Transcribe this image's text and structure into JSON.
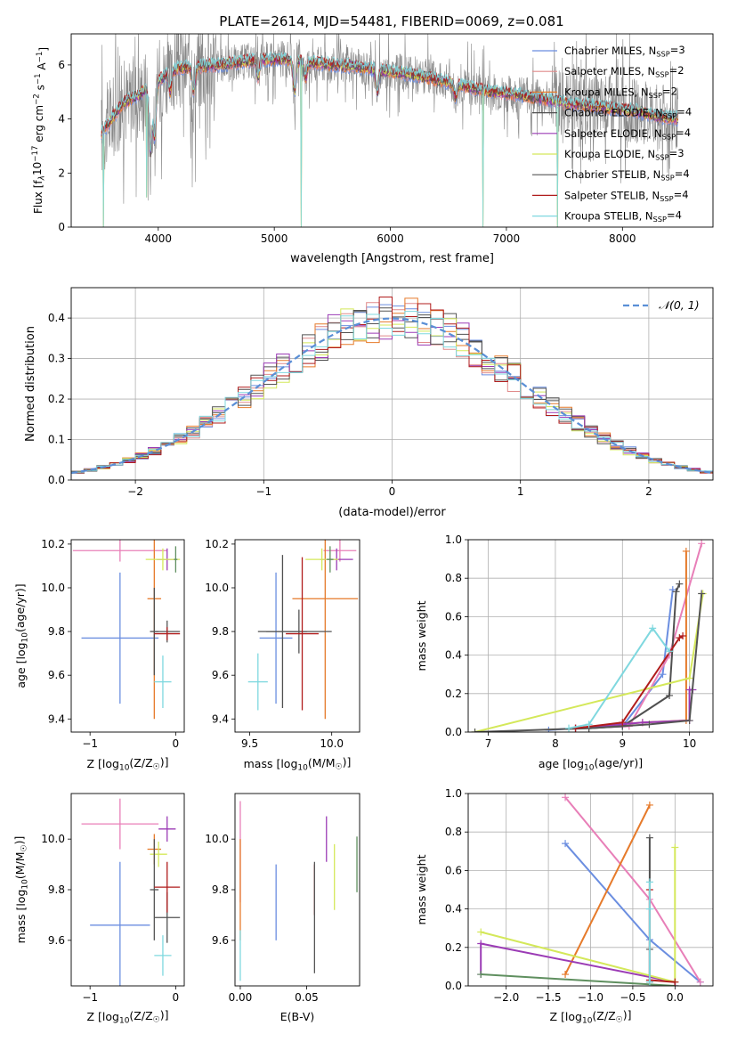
{
  "title": "PLATE=2614, MJD=54481, FIBERID=0069, z=0.081",
  "colors": {
    "chabrier_miles": "#6b8ee0",
    "salpeter_miles": "#e08a8a",
    "kroupa_miles": "#e67a2a",
    "chabrier_elodie": "#505050",
    "salpeter_elodie": "#9b3bb5",
    "kroupa_elodie": "#d4e85a",
    "chabrier_stelib": "#555555",
    "salpeter_stelib": "#b01c1c",
    "kroupa_stelib": "#7fd8df",
    "pink": "#e87fb8",
    "green_dark": "#5f8f5f",
    "gray": "#888888",
    "normal": "#5a8fd6"
  },
  "chart_data": [
    {
      "id": "spectrum",
      "type": "line",
      "title": "PLATE=2614, MJD=54481, FIBERID=0069, z=0.081",
      "xlabel": "wavelength [Angstrom, rest frame]",
      "ylabel_parts": [
        "Flux [f",
        "λ",
        "10",
        "−17",
        " erg cm",
        "−2",
        " s",
        "−1",
        " A",
        "−1",
        "]"
      ],
      "xlim": [
        3250,
        8780
      ],
      "ylim": [
        0,
        7.15
      ],
      "xticks": [
        4000,
        5000,
        6000,
        7000,
        8000
      ],
      "yticks": [
        0,
        2,
        4,
        6
      ],
      "legend_position": "top-right",
      "legend": [
        {
          "label": "Chabrier MILES, N",
          "sub": "SSP",
          "eq": "=3",
          "color": "#6b8ee0"
        },
        {
          "label": "Salpeter MILES, N",
          "sub": "SSP",
          "eq": "=2",
          "color": "#e08a8a"
        },
        {
          "label": "Kroupa MILES, N",
          "sub": "SSP",
          "eq": "=2",
          "color": "#e67a2a"
        },
        {
          "label": "Chabrier ELODIE, N",
          "sub": "SSP",
          "eq": "=4",
          "color": "#505050"
        },
        {
          "label": "Salpeter ELODIE, N",
          "sub": "SSP",
          "eq": "=4",
          "color": "#9b3bb5"
        },
        {
          "label": "Kroupa ELODIE, N",
          "sub": "SSP",
          "eq": "=3",
          "color": "#d4e85a"
        },
        {
          "label": "Chabrier STELIB, N",
          "sub": "SSP",
          "eq": "=4",
          "color": "#555555"
        },
        {
          "label": "Salpeter STELIB, N",
          "sub": "SSP",
          "eq": "=4",
          "color": "#b01c1c"
        },
        {
          "label": "Kroupa STELIB, N",
          "sub": "SSP",
          "eq": "=4",
          "color": "#7fd8df"
        }
      ],
      "continuum": [
        [
          3500,
          3.4
        ],
        [
          3600,
          4.0
        ],
        [
          3700,
          4.6
        ],
        [
          3800,
          4.8
        ],
        [
          3900,
          5.1
        ],
        [
          4000,
          5.4
        ],
        [
          4100,
          5.8
        ],
        [
          4200,
          5.9
        ],
        [
          4300,
          5.9
        ],
        [
          4500,
          6.0
        ],
        [
          4700,
          6.1
        ],
        [
          4900,
          6.2
        ],
        [
          5100,
          6.2
        ],
        [
          5300,
          6.1
        ],
        [
          5500,
          6.0
        ],
        [
          5700,
          5.95
        ],
        [
          5900,
          5.8
        ],
        [
          6100,
          5.7
        ],
        [
          6300,
          5.55
        ],
        [
          6500,
          5.35
        ],
        [
          6700,
          5.15
        ],
        [
          6900,
          5.0
        ],
        [
          7100,
          4.9
        ],
        [
          7300,
          4.75
        ],
        [
          7500,
          4.6
        ],
        [
          7700,
          4.5
        ],
        [
          7900,
          4.4
        ],
        [
          8100,
          4.3
        ],
        [
          8300,
          4.1
        ],
        [
          8500,
          4.0
        ]
      ],
      "absorption_features": [
        [
          3934,
          2.4
        ],
        [
          3969,
          2.0
        ],
        [
          4102,
          0.8
        ],
        [
          4304,
          0.9
        ],
        [
          4861,
          0.6
        ],
        [
          5175,
          1.2
        ],
        [
          5270,
          0.6
        ],
        [
          5890,
          0.8
        ],
        [
          6563,
          0.5
        ]
      ],
      "dropouts": [
        [
          3530,
          0
        ],
        [
          3900,
          1.1
        ],
        [
          5230,
          0
        ],
        [
          6800,
          0
        ],
        [
          7440,
          0
        ]
      ],
      "series_colors": [
        "#6b8ee0",
        "#e08a8a",
        "#e67a2a",
        "#505050",
        "#9b3bb5",
        "#d4e85a",
        "#555555",
        "#b01c1c",
        "#7fd8df"
      ]
    },
    {
      "id": "residuals",
      "type": "step",
      "xlabel": "(data-model)/error",
      "ylabel": "Normed distribution",
      "xlim": [
        -2.5,
        2.5
      ],
      "ylim": [
        0,
        0.475
      ],
      "xticks": [
        -2,
        -1,
        0,
        1,
        2
      ],
      "xtick_labels": [
        "−2",
        "−1",
        "0",
        "1",
        "2"
      ],
      "yticks": [
        0,
        0.1,
        0.2,
        0.3,
        0.4
      ],
      "ytick_labels": [
        "0.0",
        "0.1",
        "0.2",
        "0.3",
        "0.4"
      ],
      "grid": true,
      "legend_position": "top-right",
      "legend": [
        {
          "label": "𝒩(0, 1)",
          "color": "#5a8fd6",
          "style": "dashed"
        }
      ],
      "bin_width": 0.1,
      "bin_start": -2.5,
      "series_colors": [
        "#6b8ee0",
        "#e08a8a",
        "#e67a2a",
        "#505050",
        "#9b3bb5",
        "#d4e85a",
        "#555555",
        "#b01c1c",
        "#7fd8df"
      ]
    },
    {
      "id": "age_vs_Z",
      "type": "errorbar",
      "xlabel_parts": [
        "Z [log",
        "10",
        "(Z/Z",
        "☉",
        ")]"
      ],
      "ylabel_parts": [
        "age  [log",
        "10",
        "(age/yr)]"
      ],
      "xlim": [
        -1.22,
        0.1
      ],
      "ylim": [
        9.34,
        10.22
      ],
      "xticks": [
        -1,
        0
      ],
      "xtick_labels": [
        "−1",
        "0"
      ],
      "yticks": [
        9.4,
        9.6,
        9.8,
        10.0,
        10.2
      ],
      "ytick_labels": [
        "9.4",
        "9.6",
        "9.8",
        "10.0",
        "10.2"
      ],
      "points": [
        {
          "x": -0.65,
          "y": 9.77,
          "xerr": 0.45,
          "yerr": 0.3,
          "color": "#6b8ee0"
        },
        {
          "x": -0.65,
          "y": 10.17,
          "xerr": 0.55,
          "yerr": 0.05,
          "color": "#e87fb8"
        },
        {
          "x": -0.25,
          "y": 9.95,
          "xerr": 0.08,
          "yerr": 0.55,
          "color": "#e67a2a"
        },
        {
          "x": -0.25,
          "y": 9.8,
          "xerr": 0.05,
          "yerr": 0.2,
          "color": "#505050"
        },
        {
          "x": -0.1,
          "y": 10.13,
          "xerr": 0.12,
          "yerr": 0.05,
          "color": "#9b3bb5"
        },
        {
          "x": -0.15,
          "y": 10.13,
          "xerr": 0.2,
          "yerr": 0.05,
          "color": "#d4e85a"
        },
        {
          "x": -0.1,
          "y": 9.8,
          "xerr": 0.15,
          "yerr": 0.05,
          "color": "#555555"
        },
        {
          "x": -0.1,
          "y": 9.79,
          "xerr": 0.15,
          "yerr": 0.03,
          "color": "#b01c1c"
        },
        {
          "x": -0.15,
          "y": 9.57,
          "xerr": 0.1,
          "yerr": 0.12,
          "color": "#7fd8df"
        },
        {
          "x": 0.0,
          "y": 10.13,
          "xerr": 0.02,
          "yerr": 0.06,
          "color": "#5f8f5f"
        }
      ]
    },
    {
      "id": "age_vs_mass",
      "type": "errorbar",
      "xlabel_parts": [
        "mass [log",
        "10",
        "(M/M",
        "☉",
        ")]"
      ],
      "ylabel_parts": [],
      "xlim": [
        9.41,
        10.17
      ],
      "ylim": [
        9.34,
        10.22
      ],
      "xticks": [
        9.5,
        10.0
      ],
      "xtick_labels": [
        "9.5",
        "10.0"
      ],
      "yticks": [
        9.4,
        9.6,
        9.8,
        10.0,
        10.2
      ],
      "ytick_labels": [
        "9.4",
        "9.6",
        "9.8",
        "10.0",
        "10.2"
      ],
      "points": [
        {
          "x": 9.66,
          "y": 9.77,
          "xerr": 0.1,
          "yerr": 0.3,
          "color": "#6b8ee0"
        },
        {
          "x": 10.05,
          "y": 10.17,
          "xerr": 0.1,
          "yerr": 0.05,
          "color": "#e87fb8"
        },
        {
          "x": 9.96,
          "y": 9.95,
          "xerr": 0.2,
          "yerr": 0.55,
          "color": "#e67a2a"
        },
        {
          "x": 9.7,
          "y": 9.8,
          "xerr": 0.15,
          "yerr": 0.35,
          "color": "#505050"
        },
        {
          "x": 10.03,
          "y": 10.13,
          "xerr": 0.1,
          "yerr": 0.05,
          "color": "#9b3bb5"
        },
        {
          "x": 9.94,
          "y": 10.13,
          "xerr": 0.1,
          "yerr": 0.05,
          "color": "#d4e85a"
        },
        {
          "x": 9.8,
          "y": 9.8,
          "xerr": 0.2,
          "yerr": 0.1,
          "color": "#555555"
        },
        {
          "x": 9.82,
          "y": 9.79,
          "xerr": 0.1,
          "yerr": 0.35,
          "color": "#b01c1c"
        },
        {
          "x": 9.55,
          "y": 9.57,
          "xerr": 0.06,
          "yerr": 0.13,
          "color": "#7fd8df"
        },
        {
          "x": 9.99,
          "y": 10.13,
          "xerr": 0.02,
          "yerr": 0.06,
          "color": "#5f8f5f"
        }
      ]
    },
    {
      "id": "cum_age",
      "type": "line",
      "xlabel_parts": [
        "age  [log",
        "10",
        "(age/yr)]"
      ],
      "ylabel": "mass weight",
      "xlim": [
        6.7,
        10.35
      ],
      "ylim": [
        0,
        1.0
      ],
      "xticks": [
        7,
        8,
        9,
        10
      ],
      "xtick_labels": [
        "7",
        "8",
        "9",
        "10"
      ],
      "yticks": [
        0,
        0.2,
        0.4,
        0.6,
        0.8,
        1.0
      ],
      "ytick_labels": [
        "0.0",
        "0.2",
        "0.4",
        "0.6",
        "0.8",
        "1.0"
      ],
      "grid": true,
      "series": [
        {
          "color": "#6b8ee0",
          "x": [
            7.9,
            8.3,
            9.0,
            9.6,
            9.75
          ],
          "y": [
            0.01,
            0.02,
            0.03,
            0.3,
            0.74
          ]
        },
        {
          "color": "#e87fb8",
          "x": [
            8.3,
            9.1,
            9.7,
            10.18
          ],
          "y": [
            0.02,
            0.03,
            0.4,
            0.98
          ]
        },
        {
          "color": "#e67a2a",
          "x": [
            8.3,
            9.3,
            9.95,
            9.95
          ],
          "y": [
            0.02,
            0.05,
            0.06,
            0.94
          ]
        },
        {
          "color": "#505050",
          "x": [
            8.5,
            9.0,
            9.7,
            9.8,
            9.85
          ],
          "y": [
            0.02,
            0.03,
            0.19,
            0.73,
            0.77
          ]
        },
        {
          "color": "#9b3bb5",
          "x": [
            8.3,
            9.3,
            10.0,
            10.0,
            10.05
          ],
          "y": [
            0.02,
            0.05,
            0.06,
            0.22,
            0.22
          ]
        },
        {
          "color": "#d4e85a",
          "x": [
            6.8,
            10.0,
            10.2
          ],
          "y": [
            0.0,
            0.28,
            0.72
          ]
        },
        {
          "color": "#555555",
          "x": [
            6.8,
            8.5,
            9.4,
            10.0,
            10.18
          ],
          "y": [
            0.0,
            0.02,
            0.04,
            0.06,
            0.72
          ]
        },
        {
          "color": "#b01c1c",
          "x": [
            8.3,
            9.0,
            9.85,
            9.9
          ],
          "y": [
            0.02,
            0.05,
            0.49,
            0.5
          ]
        },
        {
          "color": "#7fd8df",
          "x": [
            8.2,
            8.5,
            9.45,
            9.7
          ],
          "y": [
            0.02,
            0.04,
            0.54,
            0.42
          ]
        }
      ]
    },
    {
      "id": "mass_vs_Z",
      "type": "errorbar",
      "xlabel_parts": [
        "Z [log",
        "10",
        "(Z/Z",
        "☉",
        ")]"
      ],
      "ylabel_parts": [
        "mass [log",
        "10",
        "(M/M",
        "☉",
        ")]"
      ],
      "xlim": [
        -1.22,
        0.1
      ],
      "ylim": [
        9.42,
        10.18
      ],
      "xticks": [
        -1,
        0
      ],
      "xtick_labels": [
        "−1",
        "0"
      ],
      "yticks": [
        9.6,
        9.8,
        10.0
      ],
      "ytick_labels": [
        "9.6",
        "9.8",
        "10.0"
      ],
      "points": [
        {
          "x": -0.65,
          "y": 9.66,
          "xerr": 0.35,
          "yerr": 0.25,
          "color": "#6b8ee0"
        },
        {
          "x": -0.65,
          "y": 10.06,
          "xerr": 0.45,
          "yerr": 0.1,
          "color": "#e87fb8"
        },
        {
          "x": -0.25,
          "y": 9.96,
          "xerr": 0.08,
          "yerr": 0.06,
          "color": "#e67a2a"
        },
        {
          "x": -0.1,
          "y": 9.69,
          "xerr": 0.15,
          "yerr": 0.1,
          "color": "#505050"
        },
        {
          "x": -0.1,
          "y": 10.04,
          "xerr": 0.1,
          "yerr": 0.05,
          "color": "#9b3bb5"
        },
        {
          "x": -0.2,
          "y": 9.94,
          "xerr": 0.1,
          "yerr": 0.05,
          "color": "#d4e85a"
        },
        {
          "x": -0.25,
          "y": 9.8,
          "xerr": 0.05,
          "yerr": 0.2,
          "color": "#555555"
        },
        {
          "x": -0.1,
          "y": 9.81,
          "xerr": 0.15,
          "yerr": 0.1,
          "color": "#b01c1c"
        },
        {
          "x": -0.15,
          "y": 9.54,
          "xerr": 0.1,
          "yerr": 0.08,
          "color": "#7fd8df"
        }
      ]
    },
    {
      "id": "mass_vs_ebv",
      "type": "errorbar",
      "xlabel": "E(B-V)",
      "xlim": [
        -0.004,
        0.09
      ],
      "ylim": [
        9.42,
        10.18
      ],
      "xticks": [
        0.0,
        0.05
      ],
      "xtick_labels": [
        "0.00",
        "0.05"
      ],
      "yticks": [
        9.6,
        9.8,
        10.0
      ],
      "ytick_labels": [
        "9.6",
        "9.8",
        "10.0"
      ],
      "points": [
        {
          "x": 0.0,
          "y": 9.95,
          "xerr": 0,
          "yerr": 0.2,
          "color": "#e87fb8"
        },
        {
          "x": 0.0,
          "y": 9.8,
          "xerr": 0,
          "yerr": 0.2,
          "color": "#e67a2a"
        },
        {
          "x": 0.0,
          "y": 9.54,
          "xerr": 0,
          "yerr": 0.1,
          "color": "#7fd8df"
        },
        {
          "x": 0.027,
          "y": 9.75,
          "xerr": 0,
          "yerr": 0.15,
          "color": "#6b8ee0"
        },
        {
          "x": 0.056,
          "y": 9.8,
          "xerr": 0,
          "yerr": 0.1,
          "color": "#b01c1c"
        },
        {
          "x": 0.056,
          "y": 9.69,
          "xerr": 0,
          "yerr": 0.22,
          "color": "#555555"
        },
        {
          "x": 0.065,
          "y": 10.0,
          "xerr": 0,
          "yerr": 0.09,
          "color": "#9b3bb5"
        },
        {
          "x": 0.071,
          "y": 9.85,
          "xerr": 0,
          "yerr": 0.13,
          "color": "#d4e85a"
        },
        {
          "x": 0.088,
          "y": 9.9,
          "xerr": 0,
          "yerr": 0.11,
          "color": "#5f8f5f"
        }
      ]
    },
    {
      "id": "cum_Z",
      "type": "line",
      "xlabel_parts": [
        "Z [log",
        "10",
        "(Z/Z",
        "☉",
        ")]"
      ],
      "ylabel": "mass weight",
      "xlim": [
        -2.45,
        0.45
      ],
      "ylim": [
        0,
        1.0
      ],
      "xticks": [
        -2.0,
        -1.5,
        -1.0,
        -0.5,
        0.0
      ],
      "xtick_labels": [
        "−2.0",
        "−1.5",
        "−1.0",
        "−0.5",
        "0.0"
      ],
      "yticks": [
        0,
        0.2,
        0.4,
        0.6,
        0.8,
        1.0
      ],
      "ytick_labels": [
        "0.0",
        "0.2",
        "0.4",
        "0.6",
        "0.8",
        "1.0"
      ],
      "grid": true,
      "series": [
        {
          "color": "#6b8ee0",
          "x": [
            -1.3,
            -0.3,
            0.3
          ],
          "y": [
            0.74,
            0.24,
            0.02
          ]
        },
        {
          "color": "#e87fb8",
          "x": [
            -1.3,
            -0.3,
            0.3
          ],
          "y": [
            0.98,
            0.45,
            0.02
          ]
        },
        {
          "color": "#e67a2a",
          "x": [
            -1.3,
            -0.3
          ],
          "y": [
            0.06,
            0.94
          ]
        },
        {
          "color": "#505050",
          "x": [
            -0.3,
            -0.3,
            -0.3
          ],
          "y": [
            0.77,
            0.19,
            0.02
          ]
        },
        {
          "color": "#9b3bb5",
          "x": [
            -2.3,
            -2.3,
            0.0,
            0.0
          ],
          "y": [
            0.06,
            0.22,
            0.02,
            0.0
          ]
        },
        {
          "color": "#d4e85a",
          "x": [
            -2.3,
            0.0,
            0.0
          ],
          "y": [
            0.28,
            0.02,
            0.72
          ]
        },
        {
          "color": "#5f8f5f",
          "x": [
            -2.3,
            0.0
          ],
          "y": [
            0.06,
            0.0
          ]
        },
        {
          "color": "#b01c1c",
          "x": [
            -0.3,
            -0.3,
            0.0
          ],
          "y": [
            0.5,
            0.03,
            0.02
          ]
        },
        {
          "color": "#7fd8df",
          "x": [
            -0.3,
            -0.3,
            -0.3
          ],
          "y": [
            0.54,
            0.4,
            0.02
          ]
        }
      ]
    }
  ]
}
